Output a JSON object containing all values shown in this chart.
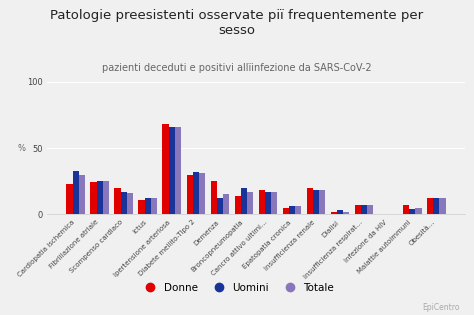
{
  "title": "Patologie preesistenti osservate piï frequentemente per\nsesso",
  "subtitle": "pazienti deceduti e positivi allïinfezione da SARS-CoV-2",
  "ylabel": "%",
  "ylim": [
    0,
    100
  ],
  "yticks": [
    0,
    50,
    100
  ],
  "watermark": "EpiCentro",
  "categories": [
    "Cardiopatia ischemica",
    "Fibrillazione atriale",
    "Scompenso cardiaco",
    "Ictus",
    "Ipertensione arteriosa",
    "Diabete mellito-Tipo 2",
    "Demenza",
    "Broncopneumopatia",
    "Cancro attivo ultimi…",
    "Epatopatia cronica",
    "Insufficienza renale",
    "Dialisi",
    "Insufficienza respirat…",
    "Infezione da HIV",
    "Malattie autoimmuni",
    "Obesità…"
  ],
  "donne": [
    23,
    24,
    20,
    11,
    68,
    30,
    25,
    14,
    18,
    5,
    20,
    2,
    7,
    0,
    7,
    12
  ],
  "uomini": [
    33,
    25,
    17,
    12,
    66,
    32,
    12,
    20,
    17,
    6,
    18,
    3,
    7,
    0,
    4,
    12
  ],
  "totale": [
    30,
    25,
    16,
    12,
    66,
    31,
    15,
    17,
    17,
    6,
    18,
    2,
    7,
    0,
    5,
    12
  ],
  "color_donne": "#e00000",
  "color_uomini": "#1a3399",
  "color_totale": "#8877bb",
  "background_color": "#f0f0f0",
  "bar_width": 0.26,
  "title_fontsize": 9.5,
  "subtitle_fontsize": 7,
  "tick_fontsize": 5,
  "label_fontsize": 7.5,
  "ytick_fontsize": 6
}
